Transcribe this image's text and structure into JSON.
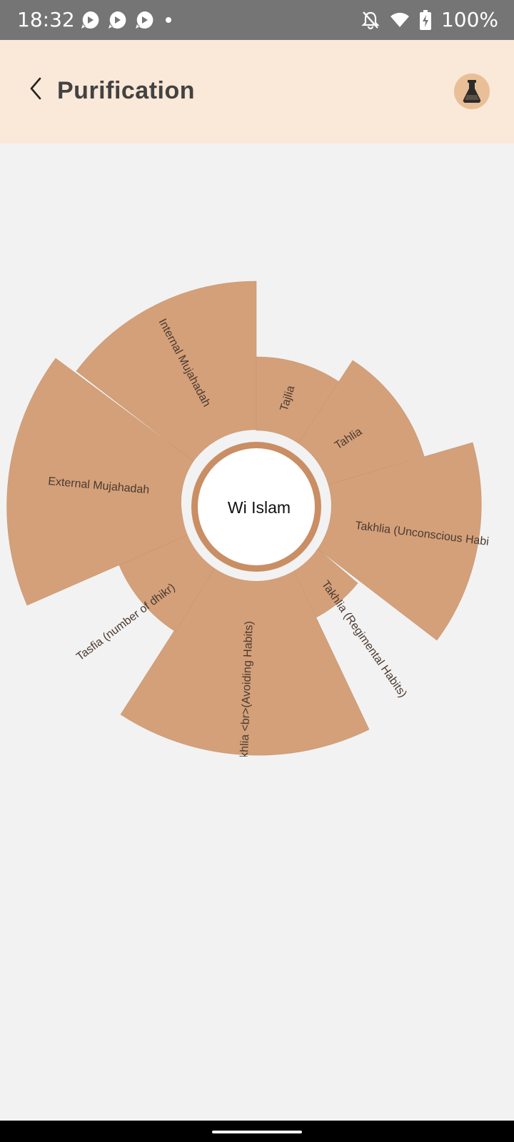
{
  "status_bar": {
    "time": "18:32",
    "battery": "100%",
    "icons": [
      "play-notification-icon",
      "play-notification-icon",
      "play-notification-icon",
      "dot-icon",
      "bell-off-icon",
      "wifi-icon",
      "battery-charging-icon"
    ]
  },
  "header": {
    "title": "Purification",
    "back_icon": "chevron-left-icon",
    "action_icon": "flask-icon"
  },
  "wheel": {
    "center_label": "Wi Islam",
    "segments": [
      {
        "label": "Internal Mujahadah"
      },
      {
        "label": "Tajlia"
      },
      {
        "label": "Tahlia"
      },
      {
        "label": "Takhlia (Unconscious Habi"
      },
      {
        "label": "Takhlia (Regimental Habits)"
      },
      {
        "label": "khlia <br>(Avoiding Habits)"
      },
      {
        "label": "Tasfia (number of dhikr)"
      },
      {
        "label": "External Mujahadah"
      }
    ]
  },
  "colors": {
    "status_bar": "#757575",
    "header_bg": "#fae8d8",
    "page_bg": "#f2f2f2",
    "segment_fill": "#d4a07a",
    "center_ring": "#c98e64",
    "title_text": "#424242"
  }
}
